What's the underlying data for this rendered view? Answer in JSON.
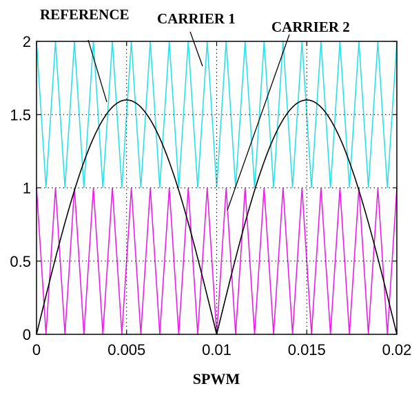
{
  "chart_data": {
    "type": "line",
    "xlabel": "SPWM",
    "ylabel": "",
    "xlim": [
      0,
      0.02
    ],
    "ylim": [
      0,
      2
    ],
    "x_ticks": [
      "0",
      "0.005",
      "0.01",
      "0.015",
      "0.02"
    ],
    "y_ticks": [
      "0",
      "0.5",
      "1",
      "1.5",
      "2"
    ],
    "grid": "dotted",
    "series": [
      {
        "name": "REFERENCE",
        "color": "#000000",
        "function": "1.6*|sin(2*pi*50*t)|",
        "x": [
          0,
          0.001,
          0.002,
          0.003,
          0.004,
          0.005,
          0.006,
          0.007,
          0.008,
          0.009,
          0.01,
          0.011,
          0.012,
          0.013,
          0.014,
          0.015,
          0.016,
          0.017,
          0.018,
          0.019,
          0.02
        ],
        "values": [
          0,
          0.494,
          0.94,
          1.294,
          1.522,
          1.6,
          1.522,
          1.294,
          0.94,
          0.494,
          0,
          0.494,
          0.94,
          1.294,
          1.522,
          1.6,
          1.522,
          1.294,
          0.94,
          0.494,
          0
        ]
      },
      {
        "name": "CARRIER 1",
        "color": "#29e0e8",
        "waveform": "triangle",
        "cycles": 19,
        "range": [
          1,
          2
        ]
      },
      {
        "name": "CARRIER 2",
        "color": "#e81ee8",
        "waveform": "triangle",
        "cycles": 19,
        "range": [
          0,
          1
        ]
      }
    ]
  },
  "annotations": {
    "reference": "REFERENCE",
    "carrier1": "CARRIER 1",
    "carrier2": "CARRIER 2"
  }
}
